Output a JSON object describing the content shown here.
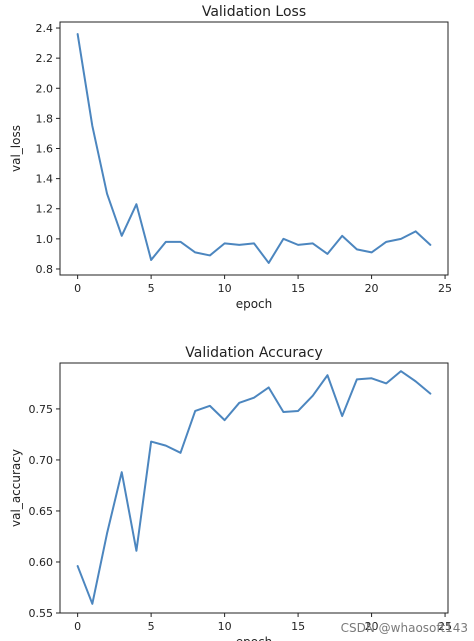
{
  "accent_color": "#4c86bf",
  "watermark": "CSDN @whaosoft143",
  "chart_data": [
    {
      "type": "line",
      "title": "Validation Loss",
      "xlabel": "epoch",
      "ylabel": "val_loss",
      "xlim": [
        -1.2,
        25.2
      ],
      "ylim": [
        0.76,
        2.44
      ],
      "xticks": [
        0,
        5,
        10,
        15,
        20,
        25
      ],
      "yticks": [
        0.8,
        1.0,
        1.2,
        1.4,
        1.6,
        1.8,
        2.0,
        2.2,
        2.4
      ],
      "ytick_labels": [
        "0.8",
        "1.0",
        "1.2",
        "1.4",
        "1.6",
        "1.8",
        "2.0",
        "2.2",
        "2.4"
      ],
      "grid": false,
      "series": [
        {
          "color": "#4c86bf",
          "x": [
            0,
            1,
            2,
            3,
            4,
            5,
            6,
            7,
            8,
            9,
            10,
            11,
            12,
            13,
            14,
            15,
            16,
            17,
            18,
            19,
            20,
            21,
            22,
            23,
            24
          ],
          "y": [
            2.36,
            1.75,
            1.3,
            1.02,
            1.23,
            0.86,
            0.98,
            0.98,
            0.91,
            0.89,
            0.97,
            0.96,
            0.97,
            0.84,
            1.0,
            0.96,
            0.97,
            0.9,
            1.02,
            0.93,
            0.91,
            0.98,
            1.0,
            1.05,
            0.96
          ]
        }
      ]
    },
    {
      "type": "line",
      "title": "Validation Accuracy",
      "xlabel": "epoch",
      "ylabel": "val_accuracy",
      "xlim": [
        -1.2,
        25.2
      ],
      "ylim": [
        0.55,
        0.795
      ],
      "xticks": [
        0,
        5,
        10,
        15,
        20,
        25
      ],
      "yticks": [
        0.55,
        0.6,
        0.65,
        0.7,
        0.75
      ],
      "ytick_labels": [
        "0.55",
        "0.60",
        "0.65",
        "0.70",
        "0.75"
      ],
      "grid": false,
      "series": [
        {
          "color": "#4c86bf",
          "x": [
            0,
            1,
            2,
            3,
            4,
            5,
            6,
            7,
            8,
            9,
            10,
            11,
            12,
            13,
            14,
            15,
            16,
            17,
            18,
            19,
            20,
            21,
            22,
            23,
            24
          ],
          "y": [
            0.596,
            0.559,
            0.628,
            0.688,
            0.611,
            0.718,
            0.714,
            0.707,
            0.748,
            0.753,
            0.739,
            0.756,
            0.761,
            0.771,
            0.747,
            0.748,
            0.763,
            0.783,
            0.743,
            0.779,
            0.78,
            0.775,
            0.787,
            0.777,
            0.765
          ]
        }
      ]
    }
  ]
}
